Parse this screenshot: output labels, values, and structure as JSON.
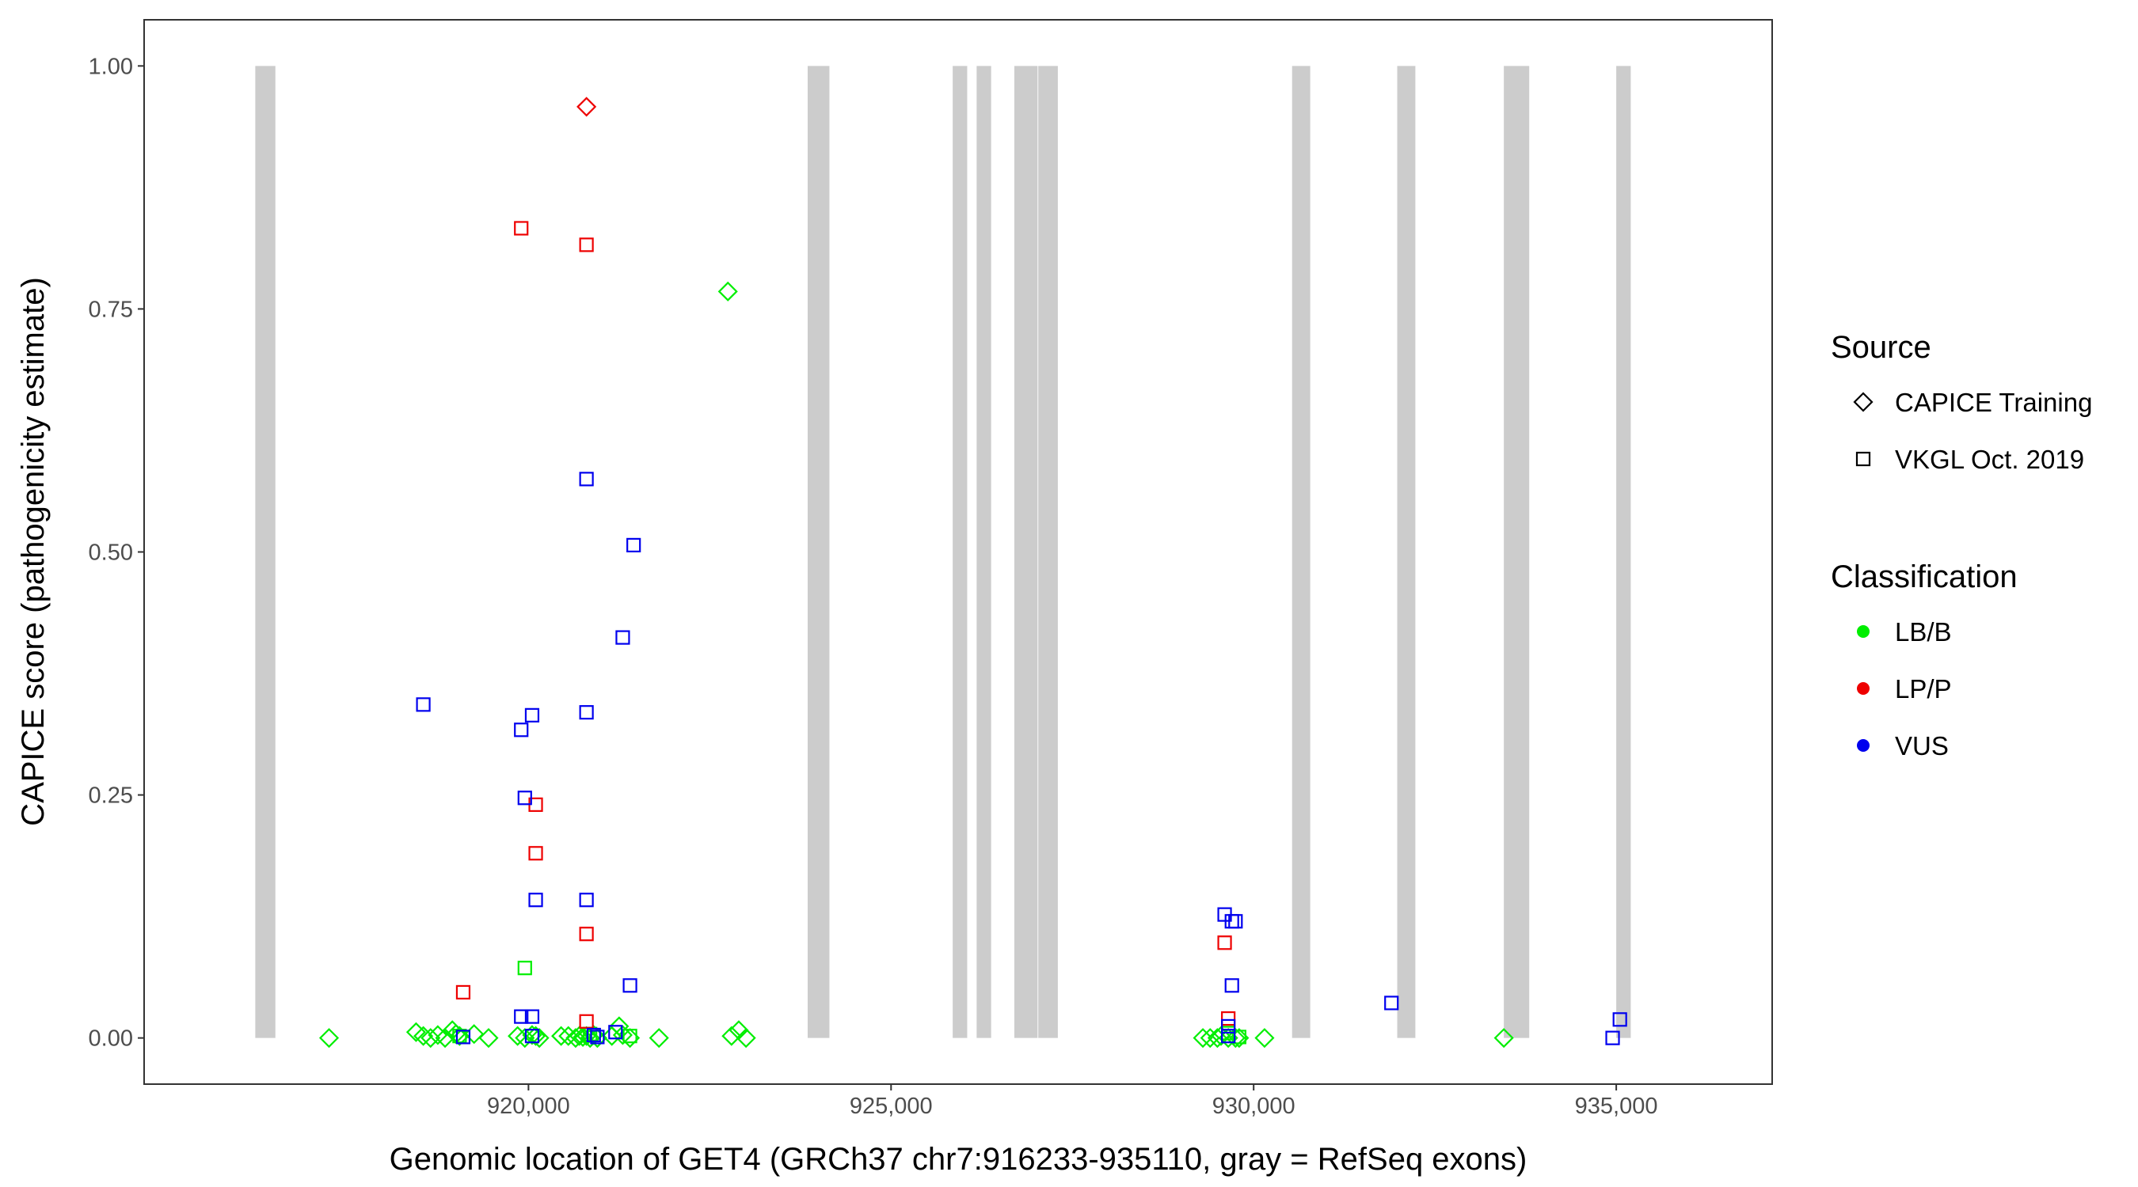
{
  "chart_data": {
    "type": "scatter",
    "title": "",
    "xlabel": "Genomic location of GET4 (GRCh37 chr7:916233-935110, gray = RefSeq exons)",
    "ylabel": "CAPICE score (pathogenicity estimate)",
    "xlim": [
      914700,
      937150
    ],
    "ylim": [
      -0.0475,
      1.0475
    ],
    "grid": false,
    "legend_placement": "right",
    "x_ticks": [
      920000,
      925000,
      930000,
      935000
    ],
    "x_tick_labels": [
      "920,000",
      "925,000",
      "930,000",
      "935,000"
    ],
    "y_ticks": [
      0,
      0.25,
      0.5,
      0.75,
      1
    ],
    "y_tick_labels": [
      "0.00",
      "0.25",
      "0.50",
      "0.75",
      "1.00"
    ],
    "exons": [
      [
        916233,
        916510
      ],
      [
        923850,
        924150
      ],
      [
        925850,
        926050
      ],
      [
        926180,
        926380
      ],
      [
        926700,
        927020
      ],
      [
        927030,
        927300
      ],
      [
        930530,
        930780
      ],
      [
        931980,
        932230
      ],
      [
        933450,
        933800
      ],
      [
        935000,
        935200
      ]
    ],
    "exon_color": "#cccccc",
    "legend": {
      "source_title": "Source",
      "source_items": [
        {
          "label": "CAPICE Training",
          "shape": "diamond"
        },
        {
          "label": "VKGL Oct. 2019",
          "shape": "square"
        }
      ],
      "class_title": "Classification",
      "class_items": [
        {
          "label": "LB/B",
          "color": "#00ee00"
        },
        {
          "label": "LP/P",
          "color": "#ee0000"
        },
        {
          "label": "VUS",
          "color": "#0000ee"
        }
      ]
    },
    "series": [
      {
        "source": "CAPICE Training",
        "classification": "LB/B",
        "points": [
          [
            917250,
            0
          ],
          [
            918450,
            0.006
          ],
          [
            918550,
            0.002
          ],
          [
            918650,
            0
          ],
          [
            918750,
            0.003
          ],
          [
            918850,
            0
          ],
          [
            918950,
            0.008
          ],
          [
            919000,
            0.004
          ],
          [
            919050,
            0.002
          ],
          [
            919250,
            0.004
          ],
          [
            919450,
            0
          ],
          [
            919850,
            0.002
          ],
          [
            919950,
            0
          ],
          [
            920050,
            0.003
          ],
          [
            920100,
            0.002
          ],
          [
            920150,
            0
          ],
          [
            920450,
            0.002
          ],
          [
            920550,
            0.002
          ],
          [
            920650,
            0
          ],
          [
            920700,
            0.002
          ],
          [
            920750,
            0.001
          ],
          [
            920800,
            0.002
          ],
          [
            920850,
            0
          ],
          [
            920900,
            0.003
          ],
          [
            920950,
            0
          ],
          [
            921150,
            0.002
          ],
          [
            921250,
            0.012
          ],
          [
            921300,
            0.003
          ],
          [
            921400,
            0
          ],
          [
            921800,
            0
          ],
          [
            922800,
            0.002
          ],
          [
            922900,
            0.008
          ],
          [
            923000,
            0
          ],
          [
            929300,
            0
          ],
          [
            929400,
            0
          ],
          [
            929500,
            0
          ],
          [
            929550,
            0.002
          ],
          [
            929650,
            0
          ],
          [
            929750,
            0
          ],
          [
            929800,
            0
          ],
          [
            930150,
            0
          ],
          [
            933450,
            0
          ]
        ]
      },
      {
        "source": "CAPICE Training",
        "classification": "LP/P",
        "points": [
          [
            920800,
            0.958
          ]
        ]
      },
      {
        "source": "CAPICE Training",
        "classification": "LB/B",
        "points": [
          [
            922750,
            0.768
          ]
        ]
      },
      {
        "source": "VKGL Oct. 2019",
        "classification": "LB/B",
        "points": [
          [
            919950,
            0.072
          ],
          [
            919050,
            0.002
          ],
          [
            920850,
            0.004
          ],
          [
            921400,
            0.002
          ],
          [
            929650,
            0.005
          ],
          [
            929800,
            0.001
          ]
        ]
      },
      {
        "source": "VKGL Oct. 2019",
        "classification": "LP/P",
        "points": [
          [
            919900,
            0.833
          ],
          [
            920800,
            0.816
          ],
          [
            920100,
            0.24
          ],
          [
            920100,
            0.19
          ],
          [
            920800,
            0.107
          ],
          [
            919100,
            0.047
          ],
          [
            920800,
            0.017
          ],
          [
            929600,
            0.098
          ],
          [
            929650,
            0.02
          ]
        ]
      },
      {
        "source": "VKGL Oct. 2019",
        "classification": "VUS",
        "points": [
          [
            920800,
            0.575
          ],
          [
            921450,
            0.507
          ],
          [
            921300,
            0.412
          ],
          [
            918550,
            0.343
          ],
          [
            920050,
            0.332
          ],
          [
            919900,
            0.317
          ],
          [
            920800,
            0.335
          ],
          [
            919950,
            0.247
          ],
          [
            920100,
            0.142
          ],
          [
            920800,
            0.142
          ],
          [
            921400,
            0.054
          ],
          [
            919900,
            0.022
          ],
          [
            920050,
            0.022
          ],
          [
            919100,
            0.001
          ],
          [
            920050,
            0.002
          ],
          [
            920900,
            0.003
          ],
          [
            920950,
            0.001
          ],
          [
            921200,
            0.006
          ],
          [
            929600,
            0.127
          ],
          [
            929700,
            0.12
          ],
          [
            929750,
            0.12
          ],
          [
            929700,
            0.054
          ],
          [
            929650,
            0.012
          ],
          [
            929650,
            0.002
          ],
          [
            931900,
            0.036
          ],
          [
            935050,
            0.019
          ],
          [
            934950,
            0
          ]
        ]
      }
    ]
  }
}
